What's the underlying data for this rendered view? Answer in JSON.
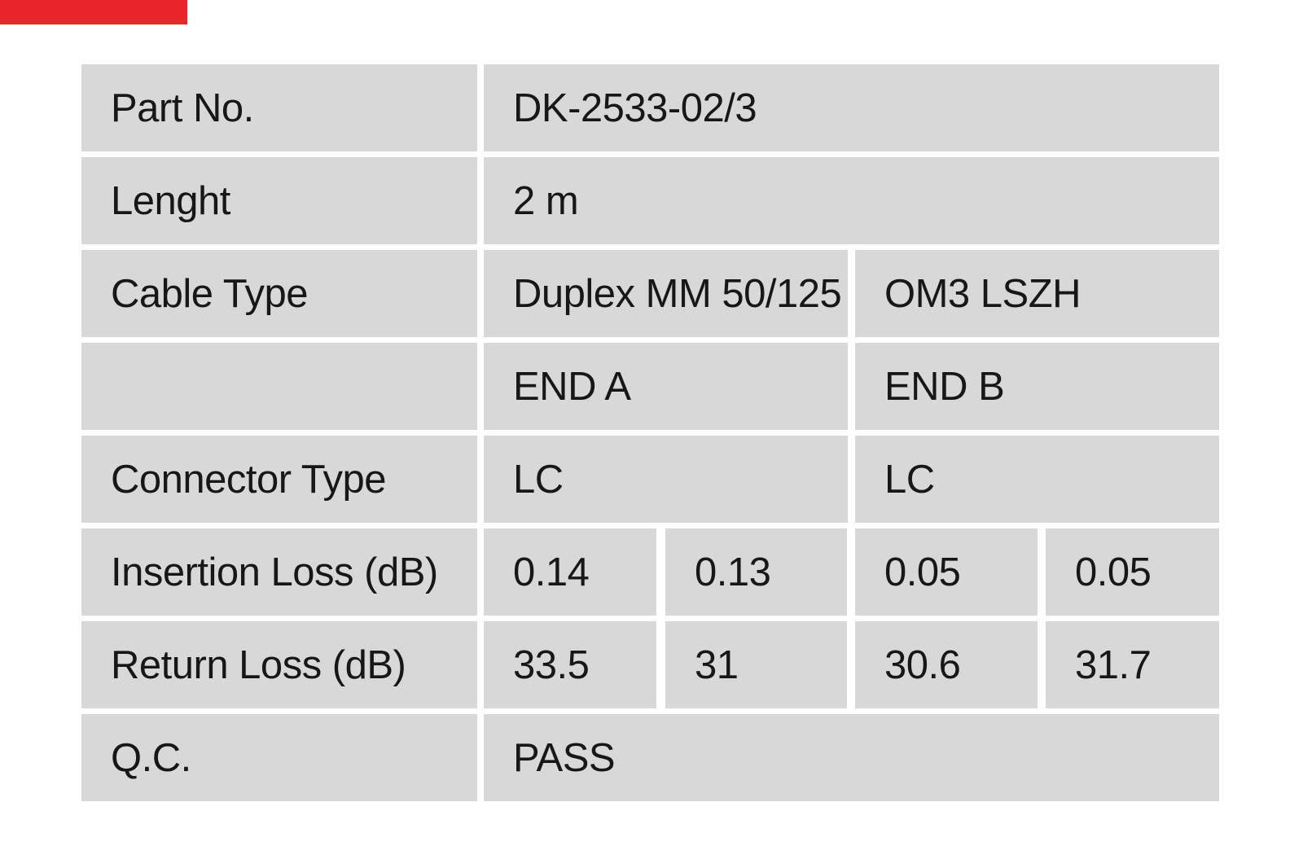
{
  "decor": {
    "red_bar_color": "#e8252a",
    "cell_background": "#d8d8d8"
  },
  "table": {
    "rows": [
      {
        "label": "Part No.",
        "cells": [
          {
            "text": "DK-2533-02/3"
          }
        ]
      },
      {
        "label": "Lenght",
        "cells": [
          {
            "text": "2 m"
          }
        ]
      },
      {
        "label": "Cable Type",
        "cells": [
          {
            "text": "Duplex MM 50/125"
          },
          {
            "text": "OM3 LSZH"
          }
        ]
      },
      {
        "label": "",
        "cells": [
          {
            "text": "END A"
          },
          {
            "text": "END B"
          }
        ]
      },
      {
        "label": "Connector Type",
        "cells": [
          {
            "text": "LC"
          },
          {
            "text": "LC"
          }
        ]
      },
      {
        "label": "Insertion Loss (dB)",
        "cells": [
          {
            "text": "0.14"
          },
          {
            "text": "0.13"
          },
          {
            "text": "0.05"
          },
          {
            "text": "0.05"
          }
        ]
      },
      {
        "label": "Return Loss (dB)",
        "cells": [
          {
            "text": "33.5"
          },
          {
            "text": "31"
          },
          {
            "text": "30.6"
          },
          {
            "text": "31.7"
          }
        ]
      },
      {
        "label": "Q.C.",
        "cells": [
          {
            "text": "PASS"
          }
        ]
      }
    ]
  }
}
